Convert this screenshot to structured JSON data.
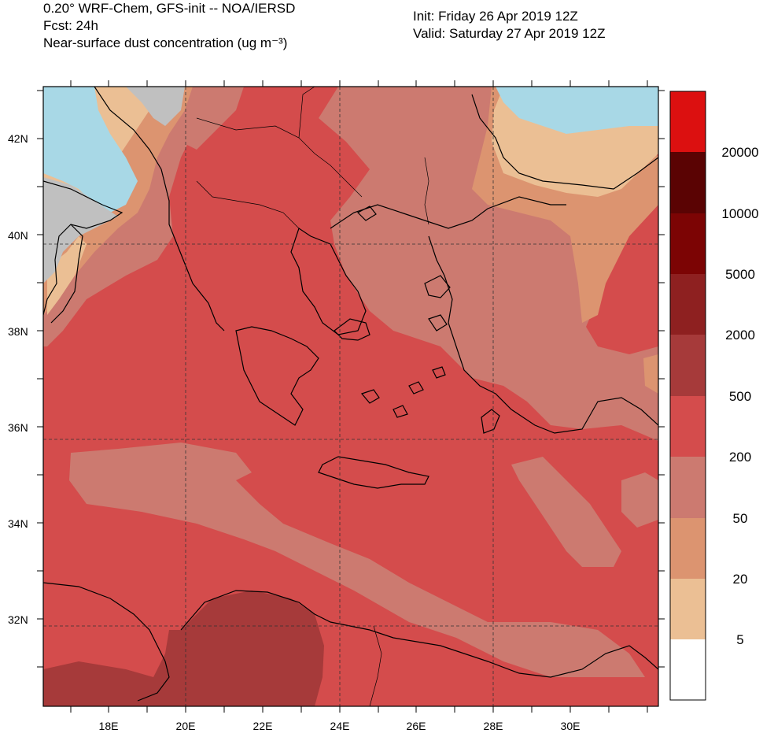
{
  "header": {
    "line1": "0.20° WRF-Chem, GFS-init -- NOA/IERSD",
    "line2": "Fcst: 24h",
    "line3": "Near-surface dust concentration (ug m⁻³)",
    "init": "Init: Friday 26 Apr 2019  12Z",
    "valid": "Valid: Saturday 27 Apr 2019  12Z"
  },
  "axes": {
    "lat_labels": [
      "42N",
      "40N",
      "38N",
      "36N",
      "34N",
      "32N"
    ],
    "lon_labels": [
      "18E",
      "20E",
      "22E",
      "24E",
      "26E",
      "28E",
      "30E"
    ]
  },
  "colorbar": {
    "levels": [
      "20000",
      "10000",
      "5000",
      "2000",
      "500",
      "200",
      "50",
      "20",
      "5"
    ],
    "colors": [
      "#dc1010",
      "#5a0303",
      "#7c0404",
      "#8e2020",
      "#a63a3a",
      "#d44c4c",
      "#cc7a70",
      "#dc9470",
      "#ebbf94",
      "#ffffff"
    ]
  },
  "map_colors": {
    "ocean_no_data": "#a8d8e6",
    "land_no_data": "#c0c0c0",
    "level_200": "#d44c4c",
    "level_50": "#cc7a70",
    "level_20": "#dc9470",
    "level_5": "#ebbf94",
    "level_500": "#a63a3a"
  }
}
